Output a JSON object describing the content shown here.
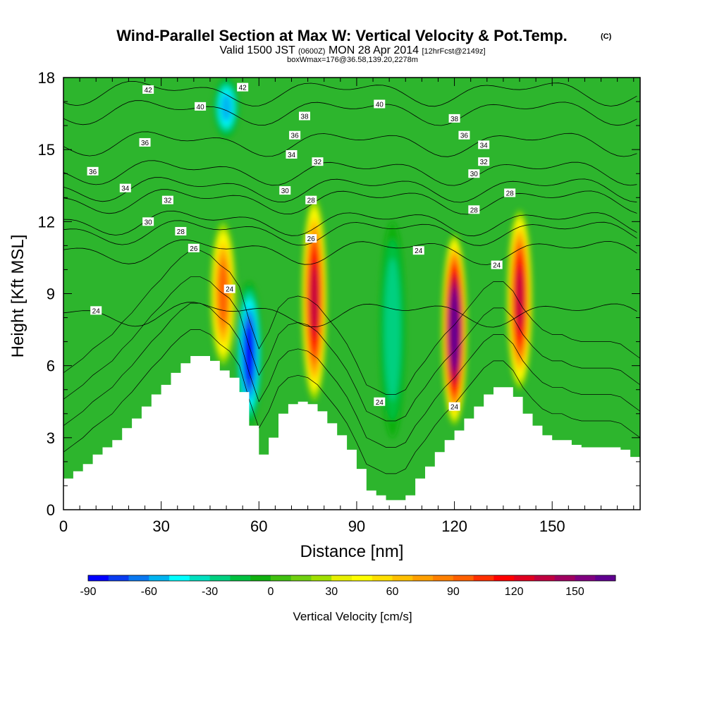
{
  "title": {
    "main": "Wind-Parallel Section at Max W: Vertical Velocity & Pot.Temp.",
    "copyright": "(C)",
    "valid_prefix": "Valid 1500 JST",
    "valid_utc": "(0600Z)",
    "valid_date": "MON 28 Apr 2014",
    "forecast": "[12hrFcst@2149z]",
    "box_info": "boxWmax=176@36.58,139.20,2278m"
  },
  "chart_data": {
    "type": "heatmap",
    "xlabel": "Distance [nm]",
    "ylabel": "Height [Kft MSL]",
    "xlim": [
      0,
      177
    ],
    "ylim": [
      0,
      18
    ],
    "x_ticks": [
      0,
      30,
      60,
      90,
      120,
      150
    ],
    "x_tick_labels": [
      "0",
      "30",
      "60",
      "90",
      "120",
      "150"
    ],
    "y_ticks": [
      0,
      3,
      6,
      9,
      12,
      15,
      18
    ],
    "y_tick_labels": [
      "0",
      "3",
      "6",
      "9",
      "12",
      "15",
      "18"
    ],
    "field": "Vertical Velocity",
    "colorbar": {
      "title": "Vertical Velocity [cm/s]",
      "min": -90,
      "max": 170,
      "step": 10,
      "tick_values": [
        -90,
        -60,
        -30,
        0,
        30,
        60,
        90,
        120,
        150
      ],
      "tick_labels": [
        "-90",
        "-60",
        "-30",
        "0",
        "30",
        "60",
        "90",
        "120",
        "150"
      ],
      "colors": [
        "#0000ff",
        "#0a3cf0",
        "#0a78f0",
        "#00b4f0",
        "#00ffff",
        "#00e0c0",
        "#00d080",
        "#00c040",
        "#10b010",
        "#40c010",
        "#70d010",
        "#a0e000",
        "#e8f000",
        "#ffff00",
        "#ffe000",
        "#ffc000",
        "#ffa000",
        "#ff8000",
        "#ff6000",
        "#ff3000",
        "#ff0000",
        "#e00020",
        "#c00040",
        "#a00060",
        "#800080",
        "#600090"
      ]
    },
    "background_value_color": "#2db52d",
    "features": {
      "updraft_cores": [
        {
          "x": 49,
          "y_bottom": 6.0,
          "y_top": 12.0,
          "peak_value": 90
        },
        {
          "x": 77,
          "y_bottom": 4.5,
          "y_top": 13.0,
          "peak_value": 130
        },
        {
          "x": 120,
          "y_bottom": 3.5,
          "y_top": 11.5,
          "peak_value": 176
        },
        {
          "x": 140,
          "y_bottom": 5.0,
          "y_top": 12.5,
          "peak_value": 130
        }
      ],
      "downdraft_cores": [
        {
          "x": 57,
          "y_bottom": 3.5,
          "y_top": 9.5,
          "peak_value": -90
        },
        {
          "x": 50,
          "y_bottom": 15.5,
          "y_top": 18.0,
          "peak_value": -60
        },
        {
          "x": 101,
          "y_bottom": 3.0,
          "y_top": 12.0,
          "peak_value": -30
        }
      ]
    },
    "terrain_kft": {
      "x": [
        0,
        3,
        6,
        9,
        12,
        15,
        18,
        21,
        24,
        27,
        30,
        33,
        36,
        39,
        42,
        45,
        48,
        51,
        54,
        57,
        60,
        63,
        66,
        69,
        72,
        75,
        78,
        81,
        84,
        87,
        90,
        93,
        96,
        99,
        102,
        105,
        108,
        111,
        114,
        117,
        120,
        123,
        126,
        129,
        132,
        135,
        138,
        141,
        144,
        147,
        150,
        153,
        156,
        159,
        162,
        165,
        168,
        171,
        174,
        177
      ],
      "height": [
        1.3,
        1.6,
        1.9,
        2.3,
        2.6,
        2.9,
        3.4,
        3.8,
        4.3,
        4.8,
        5.2,
        5.7,
        6.1,
        6.4,
        6.4,
        6.2,
        5.8,
        5.5,
        4.9,
        3.5,
        2.3,
        3.0,
        4.0,
        4.4,
        4.5,
        4.4,
        4.1,
        3.6,
        3.1,
        2.5,
        1.7,
        0.8,
        0.6,
        0.4,
        0.4,
        0.6,
        1.3,
        1.8,
        2.4,
        2.9,
        3.3,
        3.8,
        4.3,
        4.8,
        5.1,
        5.1,
        4.7,
        4.0,
        3.5,
        3.1,
        2.9,
        2.9,
        2.7,
        2.6,
        2.6,
        2.6,
        2.6,
        2.5,
        2.2,
        1.9
      ]
    },
    "contours": {
      "field": "Potential Temperature",
      "levels": [
        24,
        26,
        28,
        30,
        32,
        34,
        36,
        38,
        40,
        42
      ],
      "labels": [
        {
          "text": "42",
          "x": 26,
          "y": 17.5
        },
        {
          "text": "40",
          "x": 42,
          "y": 16.8
        },
        {
          "text": "42",
          "x": 55,
          "y": 17.6
        },
        {
          "text": "38",
          "x": 74,
          "y": 16.4
        },
        {
          "text": "40",
          "x": 97,
          "y": 16.9
        },
        {
          "text": "38",
          "x": 120,
          "y": 16.3
        },
        {
          "text": "36",
          "x": 25,
          "y": 15.3
        },
        {
          "text": "36",
          "x": 71,
          "y": 15.6
        },
        {
          "text": "36",
          "x": 123,
          "y": 15.6
        },
        {
          "text": "34",
          "x": 70,
          "y": 14.8
        },
        {
          "text": "34",
          "x": 129,
          "y": 15.2
        },
        {
          "text": "32",
          "x": 78,
          "y": 14.5
        },
        {
          "text": "32",
          "x": 129,
          "y": 14.5
        },
        {
          "text": "36",
          "x": 9,
          "y": 14.1
        },
        {
          "text": "30",
          "x": 126,
          "y": 14.0
        },
        {
          "text": "34",
          "x": 19,
          "y": 13.4
        },
        {
          "text": "30",
          "x": 68,
          "y": 13.3
        },
        {
          "text": "28",
          "x": 137,
          "y": 13.2
        },
        {
          "text": "32",
          "x": 32,
          "y": 12.9
        },
        {
          "text": "28",
          "x": 76,
          "y": 12.9
        },
        {
          "text": "28",
          "x": 126,
          "y": 12.5
        },
        {
          "text": "30",
          "x": 26,
          "y": 12.0
        },
        {
          "text": "28",
          "x": 36,
          "y": 11.6
        },
        {
          "text": "26",
          "x": 76,
          "y": 11.3
        },
        {
          "text": "26",
          "x": 40,
          "y": 10.9
        },
        {
          "text": "24",
          "x": 109,
          "y": 10.8
        },
        {
          "text": "24",
          "x": 133,
          "y": 10.2
        },
        {
          "text": "24",
          "x": 51,
          "y": 9.2
        },
        {
          "text": "24",
          "x": 10,
          "y": 8.3
        },
        {
          "text": "24",
          "x": 97,
          "y": 4.5
        },
        {
          "text": "24",
          "x": 120,
          "y": 4.3
        }
      ]
    }
  }
}
